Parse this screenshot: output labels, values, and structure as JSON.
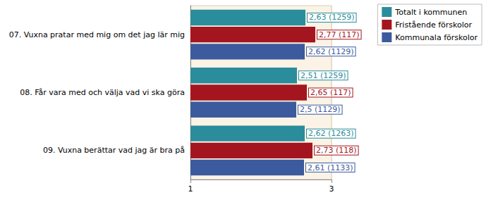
{
  "chart_data": {
    "type": "bar",
    "orientation": "horizontal",
    "categories": [
      "07. Vuxna pratar med mig om det jag lär mig",
      "08. Får vara med och välja vad vi ska göra",
      "09. Vuxna berättar vad jag är bra på"
    ],
    "series": [
      {
        "name": "Totalt i kommunen",
        "color": "#2b8c9b",
        "values": [
          2.63,
          2.51,
          2.62
        ],
        "value_labels": [
          "2,63 (1259)",
          "2,51 (1259)",
          "2,62 (1263)"
        ]
      },
      {
        "name": "Fristående förskolor",
        "color": "#a4161f",
        "values": [
          2.77,
          2.65,
          2.73
        ],
        "value_labels": [
          "2,77 (117)",
          "2,65 (117)",
          "2,73 (118)"
        ]
      },
      {
        "name": "Kommunala förskolor",
        "color": "#3b5b9e",
        "values": [
          2.62,
          2.5,
          2.61
        ],
        "value_labels": [
          "2,62 (1129)",
          "2,5 (1129)",
          "2,61 (1133)"
        ]
      }
    ],
    "xlim": [
      1,
      3
    ],
    "xticks": [
      1,
      3
    ],
    "grid": true,
    "legend": "top-right",
    "data_labels": true
  }
}
